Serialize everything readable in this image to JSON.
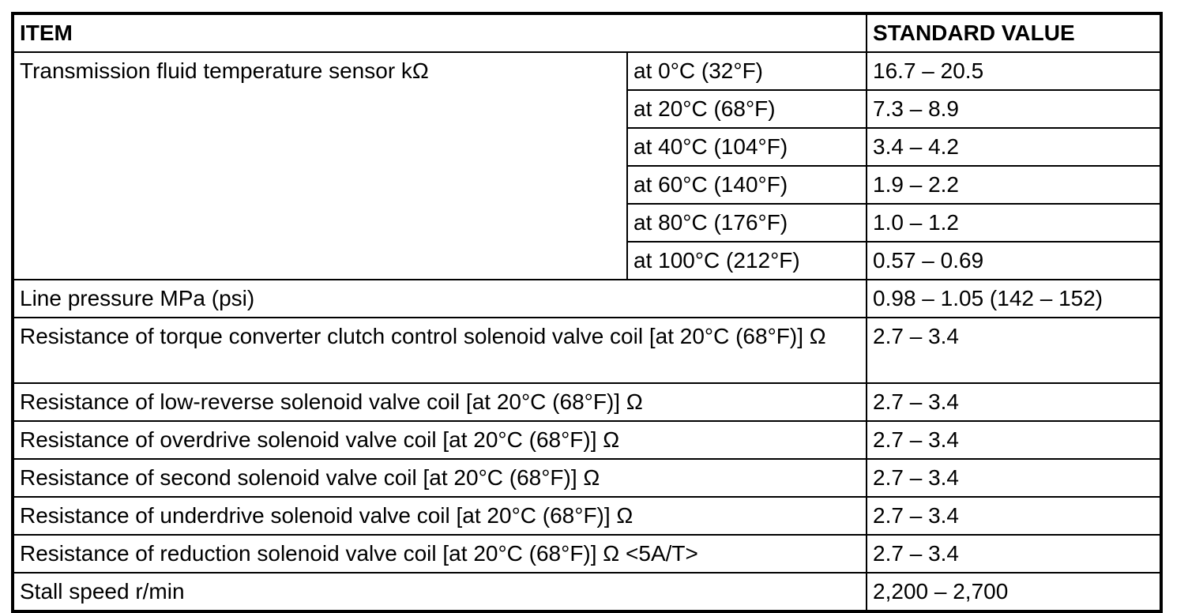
{
  "table": {
    "headers": {
      "item": "ITEM",
      "standard_value": "STANDARD VALUE"
    },
    "sensor_group": {
      "label": "Transmission fluid temperature sensor kΩ",
      "rows": [
        {
          "condition": "at 0°C (32°F)",
          "value": "16.7 – 20.5"
        },
        {
          "condition": "at 20°C (68°F)",
          "value": "7.3 – 8.9"
        },
        {
          "condition": "at 40°C (104°F)",
          "value": "3.4 – 4.2"
        },
        {
          "condition": "at 60°C (140°F)",
          "value": "1.9 – 2.2"
        },
        {
          "condition": "at 80°C (176°F)",
          "value": "1.0 – 1.2"
        },
        {
          "condition": "at 100°C (212°F)",
          "value": "0.57 – 0.69"
        }
      ]
    },
    "rows": [
      {
        "item": "Line pressure MPa (psi)",
        "value": "0.98 – 1.05 (142 – 152)"
      },
      {
        "item": "Resistance of torque converter clutch control solenoid valve coil [at 20°C (68°F)] Ω",
        "value": "2.7 – 3.4"
      },
      {
        "item": "Resistance of low-reverse solenoid valve coil [at 20°C (68°F)] Ω",
        "value": "2.7 – 3.4"
      },
      {
        "item": "Resistance of overdrive solenoid valve coil [at 20°C (68°F)] Ω",
        "value": "2.7 – 3.4"
      },
      {
        "item": "Resistance of second solenoid valve coil [at 20°C (68°F)] Ω",
        "value": "2.7 – 3.4"
      },
      {
        "item": "Resistance of underdrive solenoid valve coil [at 20°C (68°F)] Ω",
        "value": "2.7 – 3.4"
      },
      {
        "item": "Resistance of reduction solenoid valve coil [at 20°C (68°F)] Ω <5A/T>",
        "value": "2.7 – 3.4"
      },
      {
        "item": "Stall speed r/min",
        "value": "2,200 – 2,700"
      }
    ]
  }
}
